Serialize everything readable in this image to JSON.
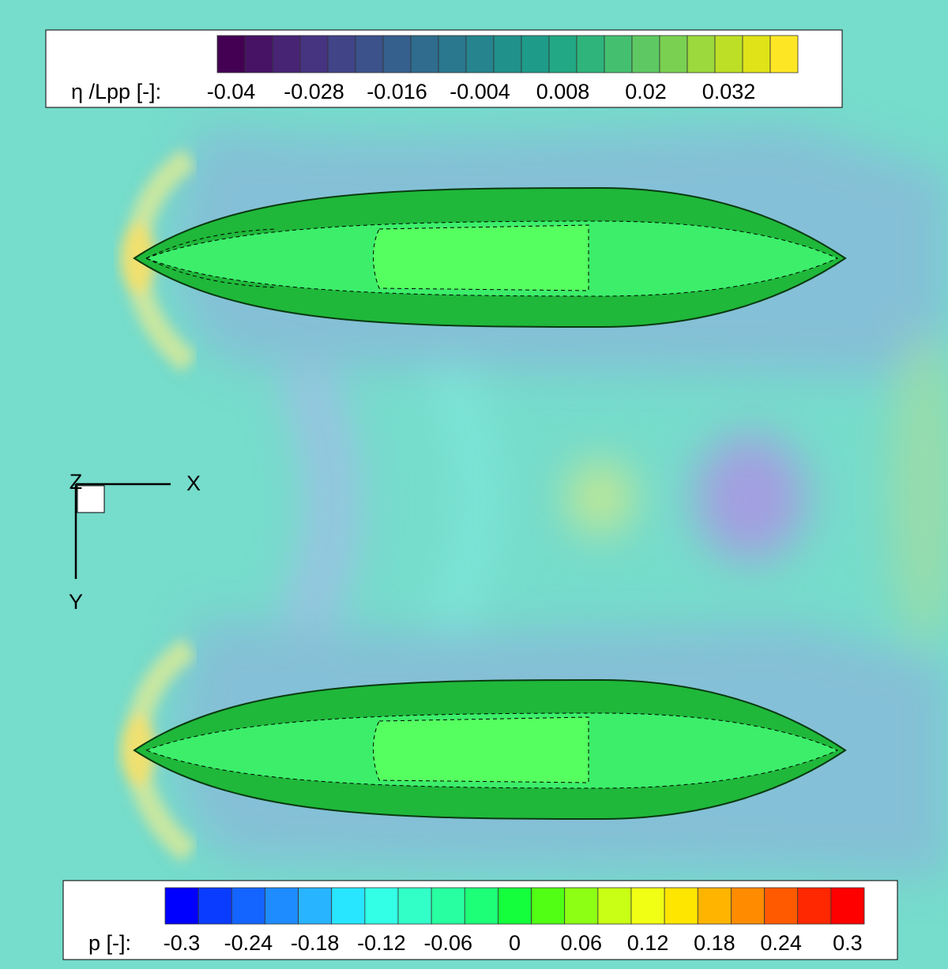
{
  "colorbars": [
    {
      "label": "η /Lpp [-]:",
      "range": [
        -0.042,
        0.042
      ],
      "ticks": [
        -0.04,
        -0.028,
        -0.016,
        -0.004,
        0.008,
        0.02,
        0.032
      ],
      "colors": [
        "#440154",
        "#471365",
        "#482475",
        "#463480",
        "#414487",
        "#3b528b",
        "#355f8d",
        "#2f6c8e",
        "#2a788e",
        "#25848e",
        "#21918c",
        "#1e9c89",
        "#22a884",
        "#2fb47c",
        "#44bf70",
        "#5ec962",
        "#7ad151",
        "#9bd93c",
        "#bddf26",
        "#dfe318",
        "#fde725"
      ]
    },
    {
      "label": "p [-]:",
      "range": [
        -0.315,
        0.315
      ],
      "ticks": [
        -0.3,
        -0.24,
        -0.18,
        -0.12,
        -0.06,
        0,
        0.06,
        0.12,
        0.18,
        0.24,
        0.3
      ],
      "colors": [
        "#0000ff",
        "#0a3cff",
        "#1464ff",
        "#1e8cff",
        "#28b4ff",
        "#28e6ff",
        "#32ffe6",
        "#32ffc8",
        "#28ffa0",
        "#1eff78",
        "#14ff3c",
        "#50ff14",
        "#8cff14",
        "#c8ff14",
        "#f0ff14",
        "#ffe600",
        "#ffb400",
        "#ff8c00",
        "#ff5a00",
        "#ff2800",
        "#ff0000"
      ]
    }
  ],
  "axes": {
    "z": "Z",
    "x": "X",
    "y": "Y"
  }
}
